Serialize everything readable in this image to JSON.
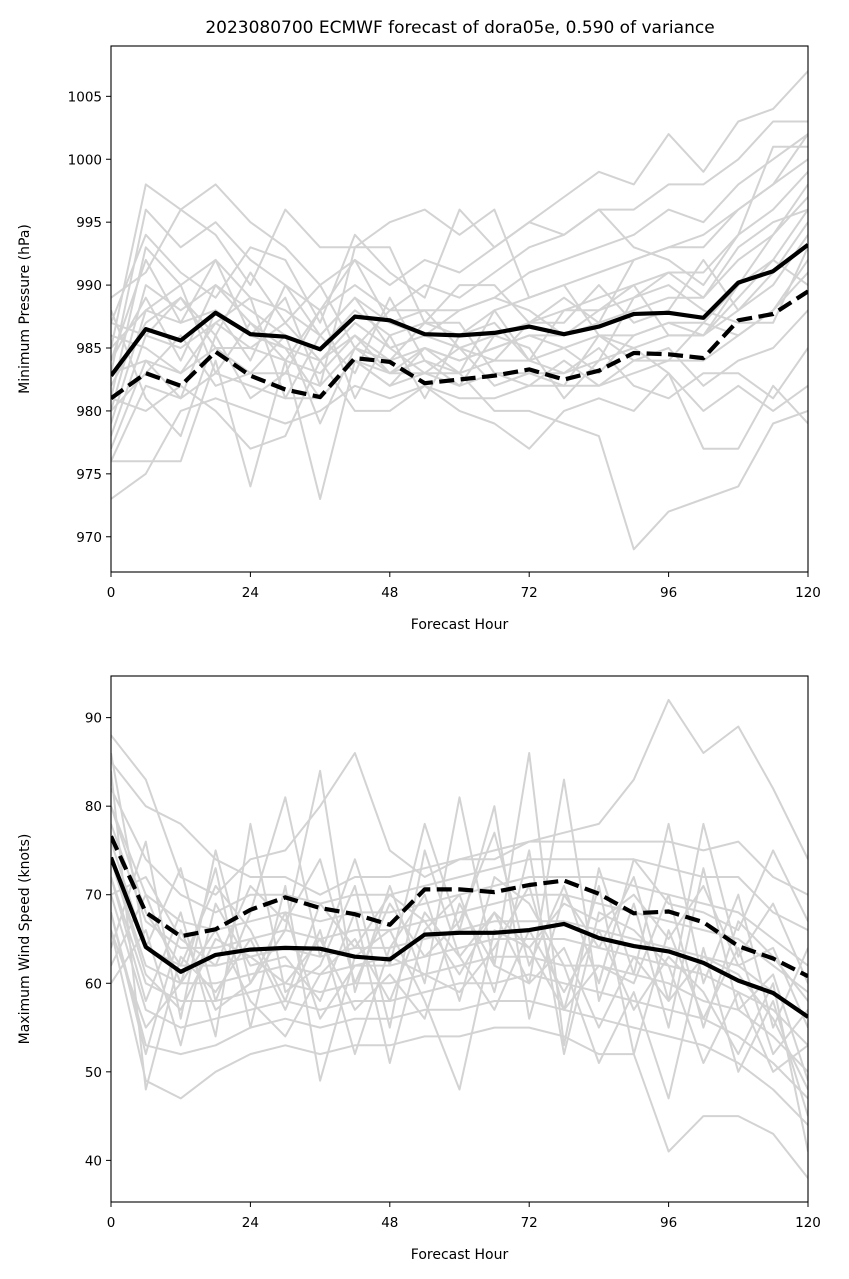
{
  "figure_title": "2023080700 ECMWF forecast of dora05e, 0.590 of variance",
  "chart_data": [
    {
      "type": "line",
      "title": "2023080700 ECMWF forecast of dora05e, 0.590 of variance",
      "xlabel": "Forecast Hour",
      "ylabel": "Minimum Pressure (hPa)",
      "xlim": [
        0,
        120
      ],
      "ylim": [
        967.2,
        1009
      ],
      "xticks": [
        0,
        24,
        48,
        72,
        96,
        120
      ],
      "yticks": [
        970,
        975,
        980,
        985,
        990,
        995,
        1000,
        1005
      ],
      "grid": false,
      "x": [
        0,
        6,
        12,
        18,
        24,
        30,
        36,
        42,
        48,
        54,
        60,
        66,
        72,
        78,
        84,
        90,
        96,
        102,
        108,
        114,
        120
      ],
      "ensemble_color": "#d3d3d3",
      "ensemble": [
        [
          985,
          998,
          996,
          998,
          995,
          993,
          990,
          992,
          990,
          992,
          991,
          993,
          995,
          997,
          999,
          998,
          1002,
          999,
          1003,
          1004,
          1007
        ],
        [
          983,
          996,
          993,
          995,
          992,
          990,
          988,
          990,
          988,
          990,
          989,
          991,
          993,
          994,
          996,
          996,
          998,
          998,
          1000,
          1003,
          1003
        ],
        [
          981,
          993,
          990,
          992,
          989,
          988,
          986,
          989,
          987,
          988,
          988,
          989,
          991,
          992,
          993,
          994,
          996,
          995,
          998,
          1000,
          1002
        ],
        [
          980,
          990,
          988,
          990,
          988,
          986,
          985,
          988,
          986,
          987,
          986,
          988,
          989,
          990,
          991,
          992,
          993,
          993,
          996,
          998,
          1000
        ],
        [
          979,
          988,
          987,
          988,
          986,
          985,
          984,
          987,
          985,
          986,
          985,
          986,
          987,
          988,
          989,
          990,
          991,
          991,
          994,
          996,
          999
        ],
        [
          978,
          986,
          985,
          987,
          985,
          984,
          983,
          986,
          984,
          985,
          984,
          985,
          986,
          986,
          987,
          988,
          989,
          989,
          992,
          994,
          998
        ],
        [
          977,
          984,
          983,
          985,
          983,
          983,
          982,
          985,
          983,
          984,
          983,
          984,
          984,
          985,
          986,
          986,
          987,
          987,
          990,
          992,
          996
        ],
        [
          976,
          982,
          981,
          983,
          982,
          981,
          981,
          984,
          982,
          983,
          982,
          983,
          983,
          983,
          984,
          985,
          986,
          986,
          988,
          990,
          994
        ],
        [
          973,
          975,
          980,
          981,
          980,
          979,
          980,
          982,
          981,
          982,
          981,
          981,
          982,
          982,
          982,
          983,
          984,
          984,
          986,
          988,
          992
        ],
        [
          976,
          976,
          976,
          984,
          974,
          984,
          973,
          984,
          983,
          985,
          983,
          980,
          980,
          979,
          978,
          969,
          972,
          973,
          974,
          979,
          980
        ],
        [
          989,
          991,
          996,
          994,
          990,
          996,
          993,
          993,
          995,
          996,
          994,
          996,
          989,
          990,
          986,
          985,
          983,
          977,
          977,
          982,
          979
        ],
        [
          987,
          994,
          991,
          989,
          993,
          992,
          987,
          994,
          991,
          989,
          996,
          993,
          995,
          994,
          996,
          993,
          992,
          990,
          994,
          1001,
          1001
        ],
        [
          984,
          989,
          984,
          990,
          987,
          984,
          988,
          992,
          987,
          986,
          988,
          989,
          988,
          986,
          988,
          990,
          986,
          986,
          990,
          994,
          997
        ],
        [
          982,
          987,
          989,
          985,
          985,
          987,
          984,
          986,
          983,
          983,
          985,
          984,
          987,
          987,
          990,
          987,
          988,
          992,
          988,
          991,
          995
        ],
        [
          986,
          985,
          983,
          987,
          989,
          981,
          986,
          983,
          989,
          984,
          982,
          986,
          985,
          981,
          984,
          989,
          990,
          988,
          987,
          987,
          993
        ],
        [
          980,
          983,
          986,
          982,
          983,
          986,
          979,
          985,
          984,
          987,
          987,
          983,
          982,
          984,
          982,
          984,
          985,
          982,
          984,
          985,
          988
        ],
        [
          988,
          981,
          978,
          986,
          981,
          983,
          988,
          981,
          986,
          981,
          986,
          987,
          984,
          983,
          985,
          982,
          981,
          983,
          983,
          981,
          985
        ],
        [
          984,
          992,
          987,
          992,
          986,
          989,
          982,
          993,
          993,
          987,
          990,
          990,
          987,
          989,
          987,
          992,
          993,
          994,
          996,
          998,
          1002
        ],
        [
          981,
          980,
          982,
          980,
          977,
          978,
          984,
          980,
          980,
          982,
          980,
          979,
          977,
          980,
          981,
          980,
          983,
          980,
          982,
          980,
          982
        ],
        [
          985,
          988,
          990,
          983,
          987,
          985,
          981,
          984,
          982,
          985,
          984,
          985,
          986,
          985,
          983,
          986,
          987,
          986,
          989,
          992,
          990
        ],
        [
          983,
          984,
          981,
          988,
          984,
          990,
          986,
          989,
          985,
          983,
          983,
          988,
          984,
          988,
          988,
          989,
          991,
          989,
          993,
          995,
          996
        ],
        [
          987,
          986,
          989,
          986,
          991,
          987,
          990,
          985,
          988,
          988,
          985,
          982,
          983,
          982,
          986,
          984,
          984,
          987,
          986,
          988,
          991
        ]
      ],
      "series": [
        {
          "name": "",
          "style": "solid",
          "values": [
            982.8,
            986.5,
            985.6,
            987.8,
            986.1,
            985.9,
            984.9,
            987.5,
            987.2,
            986.1,
            986.0,
            986.2,
            986.7,
            986.1,
            986.7,
            987.7,
            987.8,
            987.4,
            990.2,
            991.1,
            993.2
          ]
        },
        {
          "name": "",
          "style": "dashed",
          "values": [
            981.0,
            983.0,
            982.0,
            984.7,
            982.8,
            981.7,
            981.1,
            984.2,
            983.9,
            982.2,
            982.5,
            982.8,
            983.3,
            982.5,
            983.2,
            984.6,
            984.5,
            984.2,
            987.2,
            987.7,
            989.5
          ]
        }
      ]
    },
    {
      "type": "line",
      "title": "",
      "xlabel": "Forecast Hour",
      "ylabel": "Maximum Wind Speed (knots)",
      "xlim": [
        0,
        120
      ],
      "ylim": [
        35.3,
        94.7
      ],
      "xticks": [
        0,
        24,
        48,
        72,
        96,
        120
      ],
      "yticks": [
        40,
        50,
        60,
        70,
        80,
        90
      ],
      "grid": false,
      "x": [
        0,
        6,
        12,
        18,
        24,
        30,
        36,
        42,
        48,
        54,
        60,
        66,
        72,
        78,
        84,
        90,
        96,
        102,
        108,
        114,
        120
      ],
      "ensemble_color": "#d3d3d3",
      "ensemble": [
        [
          88,
          83,
          72,
          70,
          74,
          75,
          80,
          86,
          75,
          72,
          74,
          74,
          76,
          77,
          78,
          83,
          92,
          86,
          89,
          82,
          74
        ],
        [
          85,
          80,
          78,
          74,
          72,
          72,
          70,
          72,
          72,
          73,
          74,
          75,
          76,
          76,
          76,
          76,
          76,
          75,
          76,
          72,
          70
        ],
        [
          82,
          74,
          70,
          68,
          70,
          70,
          69,
          70,
          70,
          71,
          72,
          73,
          74,
          74,
          74,
          74,
          73,
          72,
          72,
          68,
          66
        ],
        [
          80,
          70,
          67,
          66,
          67,
          68,
          67,
          68,
          68,
          69,
          70,
          71,
          72,
          72,
          72,
          71,
          70,
          69,
          68,
          65,
          62
        ],
        [
          78,
          67,
          64,
          64,
          65,
          66,
          65,
          66,
          66,
          67,
          68,
          69,
          70,
          70,
          69,
          68,
          67,
          66,
          65,
          62,
          59
        ],
        [
          76,
          64,
          62,
          62,
          63,
          64,
          63,
          64,
          64,
          65,
          66,
          67,
          67,
          67,
          66,
          65,
          64,
          63,
          62,
          59,
          56
        ],
        [
          74,
          62,
          60,
          60,
          61,
          62,
          61,
          62,
          62,
          63,
          64,
          65,
          65,
          65,
          64,
          63,
          62,
          61,
          59,
          57,
          53
        ],
        [
          72,
          60,
          58,
          58,
          59,
          60,
          59,
          60,
          60,
          61,
          62,
          63,
          63,
          62,
          62,
          61,
          60,
          58,
          57,
          54,
          50
        ],
        [
          70,
          57,
          55,
          56,
          57,
          58,
          57,
          58,
          58,
          59,
          60,
          60,
          61,
          60,
          59,
          58,
          57,
          56,
          54,
          51,
          47
        ],
        [
          68,
          53,
          52,
          53,
          55,
          56,
          55,
          56,
          56,
          57,
          57,
          58,
          58,
          57,
          56,
          55,
          54,
          53,
          51,
          48,
          44
        ],
        [
          66,
          49,
          47,
          50,
          52,
          53,
          52,
          53,
          53,
          54,
          54,
          55,
          55,
          54,
          52,
          52,
          41,
          45,
          45,
          43,
          38
        ],
        [
          86,
          64,
          73,
          58,
          68,
          81,
          63,
          74,
          62,
          78,
          66,
          80,
          56,
          70,
          64,
          72,
          58,
          78,
          63,
          69,
          60
        ],
        [
          64,
          76,
          56,
          75,
          60,
          66,
          84,
          59,
          71,
          60,
          81,
          62,
          86,
          53,
          73,
          61,
          78,
          60,
          70,
          55,
          64
        ],
        [
          72,
          58,
          68,
          54,
          78,
          59,
          62,
          71,
          55,
          75,
          63,
          68,
          60,
          83,
          58,
          69,
          55,
          73,
          57,
          61,
          49
        ],
        [
          62,
          70,
          60,
          73,
          55,
          71,
          49,
          63,
          66,
          58,
          48,
          66,
          64,
          57,
          71,
          52,
          66,
          56,
          64,
          52,
          57
        ],
        [
          84,
          48,
          63,
          59,
          65,
          57,
          66,
          52,
          64,
          70,
          58,
          72,
          69,
          62,
          51,
          59,
          47,
          64,
          50,
          58,
          45
        ],
        [
          60,
          66,
          53,
          69,
          62,
          63,
          58,
          68,
          51,
          66,
          70,
          59,
          75,
          52,
          68,
          66,
          62,
          51,
          59,
          50,
          53
        ],
        [
          70,
          72,
          65,
          62,
          71,
          67,
          74,
          60,
          69,
          63,
          67,
          77,
          62,
          71,
          60,
          74,
          69,
          68,
          66,
          75,
          67
        ],
        [
          66,
          55,
          60,
          66,
          58,
          54,
          61,
          65,
          58,
          68,
          63,
          57,
          66,
          59,
          66,
          57,
          63,
          59,
          52,
          60,
          41
        ],
        [
          74,
          61,
          57,
          65,
          63,
          60,
          65,
          57,
          61,
          56,
          69,
          62,
          60,
          64,
          55,
          63,
          58,
          63,
          61,
          56,
          48
        ],
        [
          68,
          52,
          66,
          57,
          60,
          68,
          56,
          62,
          63,
          61,
          59,
          64,
          71,
          57,
          62,
          60,
          70,
          55,
          67,
          63,
          58
        ],
        [
          80,
          68,
          62,
          71,
          66,
          58,
          69,
          64,
          70,
          67,
          61,
          68,
          64,
          69,
          67,
          70,
          65,
          71,
          62,
          64,
          55
        ]
      ],
      "series": [
        {
          "name": "",
          "style": "solid",
          "values": [
            74.2,
            64.1,
            61.3,
            63.2,
            63.8,
            64.0,
            63.9,
            63.0,
            62.7,
            65.5,
            65.7,
            65.7,
            66.0,
            66.7,
            65.1,
            64.2,
            63.6,
            62.3,
            60.3,
            58.9,
            56.2
          ]
        },
        {
          "name": "",
          "style": "dashed",
          "values": [
            76.6,
            68.0,
            65.3,
            66.1,
            68.3,
            69.7,
            68.5,
            67.8,
            66.6,
            70.6,
            70.6,
            70.3,
            71.1,
            71.6,
            70.1,
            67.9,
            68.1,
            66.9,
            64.2,
            62.8,
            60.8
          ]
        }
      ]
    }
  ]
}
